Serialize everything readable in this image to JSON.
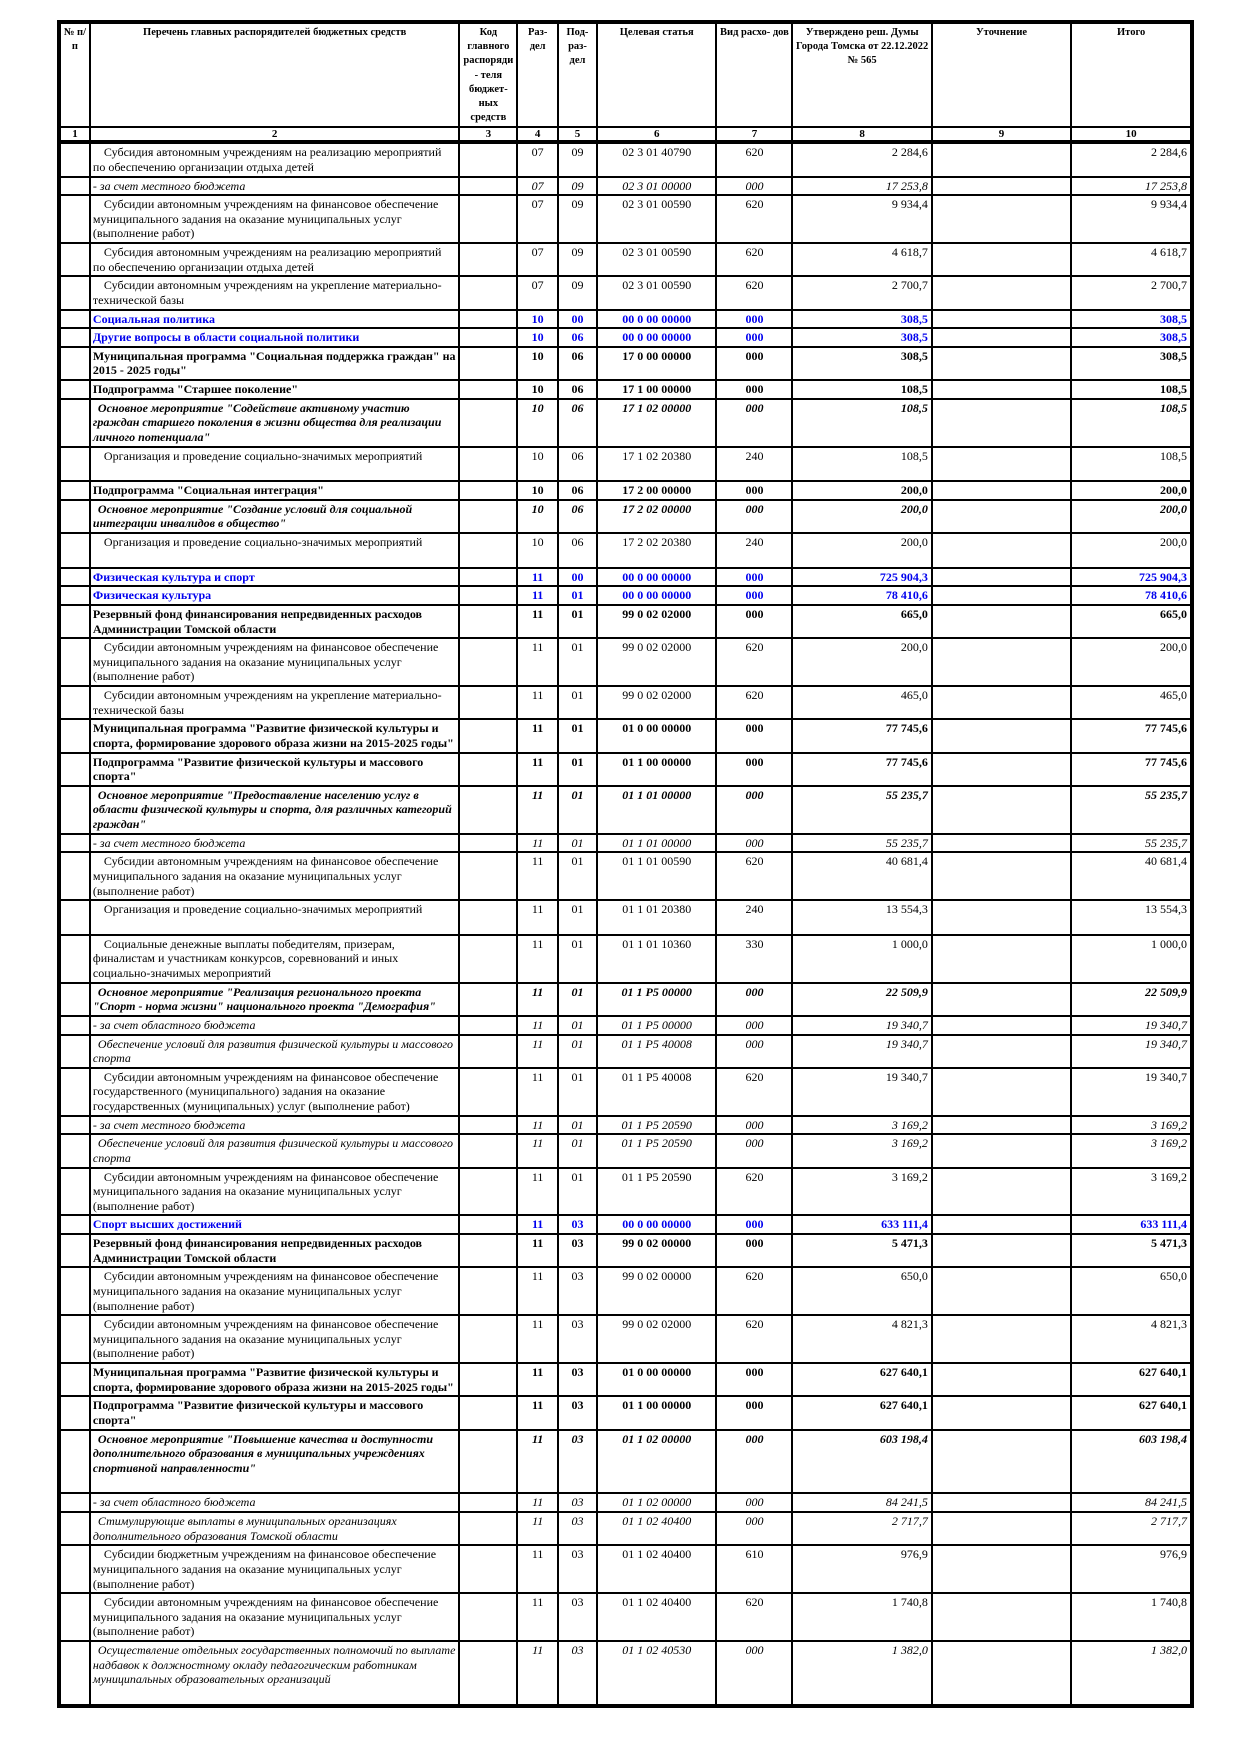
{
  "colors": {
    "section_blue": "#0000EE",
    "border": "#000000",
    "background": "#FFFFFF"
  },
  "header": {
    "columns": [
      "№ п/п",
      "Перечень главных распорядителей бюджетных средств",
      "Код главного распоряди- теля бюджет- ных средств",
      "Раз- дел",
      "Под- раз- дел",
      "Целевая статья",
      "Вид расхо- дов",
      "Утверждено реш. Думы Города Томска от 22.12.2022 № 565",
      "Уточнение",
      "Итого"
    ],
    "numbers": [
      "1",
      "2",
      "3",
      "4",
      "5",
      "6",
      "7",
      "8",
      "9",
      "10"
    ]
  },
  "rows": [
    {
      "text": "Субсидия автономным учреждениям на реализацию мероприятий по обеспечению организации отдыха детей",
      "rz": "07",
      "pr": "09",
      "cs": "02 3 01 40790",
      "vr": "620",
      "approved": "2 284,6",
      "total": "2 284,6",
      "style": "normal"
    },
    {
      "text": "- за счет местного бюджета",
      "rz": "07",
      "pr": "09",
      "cs": "02 3 01 00000",
      "vr": "000",
      "approved": "17 253,8",
      "total": "17 253,8",
      "style": "italic"
    },
    {
      "text": "Субсидии автономным учреждениям на финансовое обеспечение муниципального задания на оказание муниципальных услуг (выполнение работ)",
      "rz": "07",
      "pr": "09",
      "cs": "02 3 01 00590",
      "vr": "620",
      "approved": "9 934,4",
      "total": "9 934,4",
      "style": "normal"
    },
    {
      "text": "Субсидия автономным учреждениям на реализацию мероприятий по обеспечению организации отдыха детей",
      "rz": "07",
      "pr": "09",
      "cs": "02 3 01 00590",
      "vr": "620",
      "approved": "4 618,7",
      "total": "4 618,7",
      "style": "normal"
    },
    {
      "text": "Субсидии автономным учреждениям на укрепление материально-технической базы",
      "rz": "07",
      "pr": "09",
      "cs": "02 3 01 00590",
      "vr": "620",
      "approved": "2 700,7",
      "total": "2 700,7",
      "style": "normal"
    },
    {
      "text": "Социальная политика",
      "rz": "10",
      "pr": "00",
      "cs": "00 0 00 00000",
      "vr": "000",
      "approved": "308,5",
      "total": "308,5",
      "style": "blue"
    },
    {
      "text": "Другие вопросы в области социальной политики",
      "rz": "10",
      "pr": "06",
      "cs": "00 0 00 00000",
      "vr": "000",
      "approved": "308,5",
      "total": "308,5",
      "style": "blue"
    },
    {
      "text": "Муниципальная программа \"Социальная поддержка граждан\" на 2015 - 2025 годы\"",
      "rz": "10",
      "pr": "06",
      "cs": "17 0 00 00000",
      "vr": "000",
      "approved": "308,5",
      "total": "308,5",
      "style": "bold"
    },
    {
      "text": "Подпрограмма \"Старшее поколение\"",
      "rz": "10",
      "pr": "06",
      "cs": "17 1 00 00000",
      "vr": "000",
      "approved": "108,5",
      "total": "108,5",
      "style": "bold"
    },
    {
      "text": "Основное мероприятие \"Содействие активному участию граждан старшего поколения в жизни общества для реализации личного потенциала\"",
      "rz": "10",
      "pr": "06",
      "cs": "17 1 02 00000",
      "vr": "000",
      "approved": "108,5",
      "total": "108,5",
      "style": "bolditalic"
    },
    {
      "text": "Организация и проведение социально-значимых мероприятий",
      "rz": "10",
      "pr": "06",
      "cs": "17 1 02 20380",
      "vr": "240",
      "approved": "108,5",
      "total": "108,5",
      "style": "normal",
      "tall": true
    },
    {
      "text": "Подпрограмма \"Социальная интеграция\"",
      "rz": "10",
      "pr": "06",
      "cs": "17 2 00 00000",
      "vr": "000",
      "approved": "200,0",
      "total": "200,0",
      "style": "bold"
    },
    {
      "text": "Основное мероприятие \"Создание условий для социальной интеграции инвалидов в общество\"",
      "rz": "10",
      "pr": "06",
      "cs": "17 2 02 00000",
      "vr": "000",
      "approved": "200,0",
      "total": "200,0",
      "style": "bolditalic"
    },
    {
      "text": "Организация и проведение социально-значимых мероприятий",
      "rz": "10",
      "pr": "06",
      "cs": "17 2 02 20380",
      "vr": "240",
      "approved": "200,0",
      "total": "200,0",
      "style": "normal",
      "tall": true
    },
    {
      "text": "Физическая культура и спорт",
      "rz": "11",
      "pr": "00",
      "cs": "00 0 00 00000",
      "vr": "000",
      "approved": "725 904,3",
      "total": "725 904,3",
      "style": "blue"
    },
    {
      "text": "Физическая культура",
      "rz": "11",
      "pr": "01",
      "cs": "00 0 00 00000",
      "vr": "000",
      "approved": "78 410,6",
      "total": "78 410,6",
      "style": "blue"
    },
    {
      "text": "Резервный фонд финансирования непредвиденных расходов Администрации Томской области",
      "rz": "11",
      "pr": "01",
      "cs": "99 0 02 02000",
      "vr": "000",
      "approved": "665,0",
      "total": "665,0",
      "style": "bold"
    },
    {
      "text": "Субсидии автономным учреждениям на финансовое обеспечение муниципального задания на оказание муниципальных услуг (выполнение работ)",
      "rz": "11",
      "pr": "01",
      "cs": "99 0 02 02000",
      "vr": "620",
      "approved": "200,0",
      "total": "200,0",
      "style": "normal"
    },
    {
      "text": "Субсидии автономным учреждениям на укрепление материально-технической базы",
      "rz": "11",
      "pr": "01",
      "cs": "99 0 02 02000",
      "vr": "620",
      "approved": "465,0",
      "total": "465,0",
      "style": "normal"
    },
    {
      "text": "Муниципальная программа \"Развитие физической культуры и спорта, формирование здорового образа жизни на 2015-2025 годы\"",
      "rz": "11",
      "pr": "01",
      "cs": "01 0 00 00000",
      "vr": "000",
      "approved": "77 745,6",
      "total": "77 745,6",
      "style": "bold"
    },
    {
      "text": "Подпрограмма \"Развитие физической культуры и массового спорта\"",
      "rz": "11",
      "pr": "01",
      "cs": "01 1 00 00000",
      "vr": "000",
      "approved": "77 745,6",
      "total": "77 745,6",
      "style": "bold"
    },
    {
      "text": "Основное мероприятие \"Предоставление населению услуг в области физической культуры и спорта, для различных категорий граждан\"",
      "rz": "11",
      "pr": "01",
      "cs": "01 1 01 00000",
      "vr": "000",
      "approved": "55 235,7",
      "total": "55 235,7",
      "style": "bolditalic"
    },
    {
      "text": "- за счет местного бюджета",
      "rz": "11",
      "pr": "01",
      "cs": "01 1 01 00000",
      "vr": "000",
      "approved": "55 235,7",
      "total": "55 235,7",
      "style": "italic"
    },
    {
      "text": "Субсидии автономным учреждениям на финансовое обеспечение муниципального задания на оказание муниципальных услуг (выполнение работ)",
      "rz": "11",
      "pr": "01",
      "cs": "01 1 01 00590",
      "vr": "620",
      "approved": "40 681,4",
      "total": "40 681,4",
      "style": "normal"
    },
    {
      "text": "Организация и проведение социально-значимых мероприятий",
      "rz": "11",
      "pr": "01",
      "cs": "01 1 01 20380",
      "vr": "240",
      "approved": "13 554,3",
      "total": "13 554,3",
      "style": "normal",
      "tall": true
    },
    {
      "text": "Социальные денежные выплаты победителям, призерам, финалистам и участникам конкурсов, соревнований и иных социально-значимых мероприятий",
      "rz": "11",
      "pr": "01",
      "cs": "01 1 01 10360",
      "vr": "330",
      "approved": "1 000,0",
      "total": "1 000,0",
      "style": "normal"
    },
    {
      "text": "Основное мероприятие \"Реализация регионального проекта \"Спорт - норма жизни\" национального проекта \"Демография\"",
      "rz": "11",
      "pr": "01",
      "cs": "01 1 P5 00000",
      "vr": "000",
      "approved": "22 509,9",
      "total": "22 509,9",
      "style": "bolditalic"
    },
    {
      "text": "- за счет областного бюджета",
      "rz": "11",
      "pr": "01",
      "cs": "01 1 P5 00000",
      "vr": "000",
      "approved": "19 340,7",
      "total": "19 340,7",
      "style": "italic"
    },
    {
      "text": "Обеспечение условий для развития физической культуры и массового спорта",
      "rz": "11",
      "pr": "01",
      "cs": "01 1 P5 40008",
      "vr": "000",
      "approved": "19 340,7",
      "total": "19 340,7",
      "style": "italic"
    },
    {
      "text": "Субсидии автономным учреждениям на финансовое обеспечение государственного (муниципального) задания на оказание государственных (муниципальных) услуг (выполнение работ)",
      "rz": "11",
      "pr": "01",
      "cs": "01 1 P5 40008",
      "vr": "620",
      "approved": "19 340,7",
      "total": "19 340,7",
      "style": "normal"
    },
    {
      "text": "- за счет местного бюджета",
      "rz": "11",
      "pr": "01",
      "cs": "01 1 P5 20590",
      "vr": "000",
      "approved": "3 169,2",
      "total": "3 169,2",
      "style": "italic"
    },
    {
      "text": "Обеспечение условий для развития физической культуры и массового спорта",
      "rz": "11",
      "pr": "01",
      "cs": "01 1 P5 20590",
      "vr": "000",
      "approved": "3 169,2",
      "total": "3 169,2",
      "style": "italic"
    },
    {
      "text": "Субсидии автономным учреждениям на финансовое обеспечение муниципального задания на оказание муниципальных услуг (выполнение работ)",
      "rz": "11",
      "pr": "01",
      "cs": "01 1 P5 20590",
      "vr": "620",
      "approved": "3 169,2",
      "total": "3 169,2",
      "style": "normal"
    },
    {
      "text": "Спорт высших достижений",
      "rz": "11",
      "pr": "03",
      "cs": "00 0 00 00000",
      "vr": "000",
      "approved": "633 111,4",
      "total": "633 111,4",
      "style": "blue"
    },
    {
      "text": "Резервный фонд финансирования непредвиденных расходов Администрации Томской области",
      "rz": "11",
      "pr": "03",
      "cs": "99 0 02 00000",
      "vr": "000",
      "approved": "5 471,3",
      "total": "5 471,3",
      "style": "bold"
    },
    {
      "text": "Субсидии автономным учреждениям на финансовое обеспечение муниципального задания на оказание муниципальных услуг (выполнение работ)",
      "rz": "11",
      "pr": "03",
      "cs": "99 0 02 00000",
      "vr": "620",
      "approved": "650,0",
      "total": "650,0",
      "style": "normal"
    },
    {
      "text": "Субсидии автономным учреждениям на финансовое обеспечение муниципального задания на оказание муниципальных услуг (выполнение работ)",
      "rz": "11",
      "pr": "03",
      "cs": "99 0 02 02000",
      "vr": "620",
      "approved": "4 821,3",
      "total": "4 821,3",
      "style": "normal"
    },
    {
      "text": "Муниципальная программа \"Развитие физической культуры и спорта, формирование здорового образа жизни на 2015-2025 годы\"",
      "rz": "11",
      "pr": "03",
      "cs": "01 0 00 00000",
      "vr": "000",
      "approved": "627 640,1",
      "total": "627 640,1",
      "style": "bold"
    },
    {
      "text": "Подпрограмма \"Развитие физической культуры и массового спорта\"",
      "rz": "11",
      "pr": "03",
      "cs": "01 1 00 00000",
      "vr": "000",
      "approved": "627 640,1",
      "total": "627 640,1",
      "style": "bold"
    },
    {
      "text": "Основное мероприятие \"Повышение качества и доступности дополнительного образования в муниципальных учреждениях спортивной направленности\"",
      "rz": "11",
      "pr": "03",
      "cs": "01 1 02 00000",
      "vr": "000",
      "approved": "603 198,4",
      "total": "603 198,4",
      "style": "bolditalic",
      "tall": true
    },
    {
      "text": "- за счет областного бюджета",
      "rz": "11",
      "pr": "03",
      "cs": "01 1 02 00000",
      "vr": "000",
      "approved": "84 241,5",
      "total": "84 241,5",
      "style": "italic"
    },
    {
      "text": "Стимулирующие выплаты в муниципальных организациях дополнительного образования Томской области",
      "rz": "11",
      "pr": "03",
      "cs": "01 1 02 40400",
      "vr": "000",
      "approved": "2 717,7",
      "total": "2 717,7",
      "style": "italic"
    },
    {
      "text": "Субсидии бюджетным учреждениям на финансовое обеспечение муниципального задания на оказание муниципальных услуг (выполнение работ)",
      "rz": "11",
      "pr": "03",
      "cs": "01 1 02 40400",
      "vr": "610",
      "approved": "976,9",
      "total": "976,9",
      "style": "normal"
    },
    {
      "text": "Субсидии автономным учреждениям на финансовое обеспечение муниципального задания на оказание муниципальных услуг (выполнение работ)",
      "rz": "11",
      "pr": "03",
      "cs": "01 1 02 40400",
      "vr": "620",
      "approved": "1 740,8",
      "total": "1 740,8",
      "style": "normal"
    },
    {
      "text": "Осуществление отдельных государственных полномочий по выплате надбавок к должностному окладу педагогическим работникам муниципальных образовательных организаций",
      "rz": "11",
      "pr": "03",
      "cs": "01 1 02 40530",
      "vr": "000",
      "approved": "1 382,0",
      "total": "1 382,0",
      "style": "italic",
      "tall": true
    }
  ]
}
